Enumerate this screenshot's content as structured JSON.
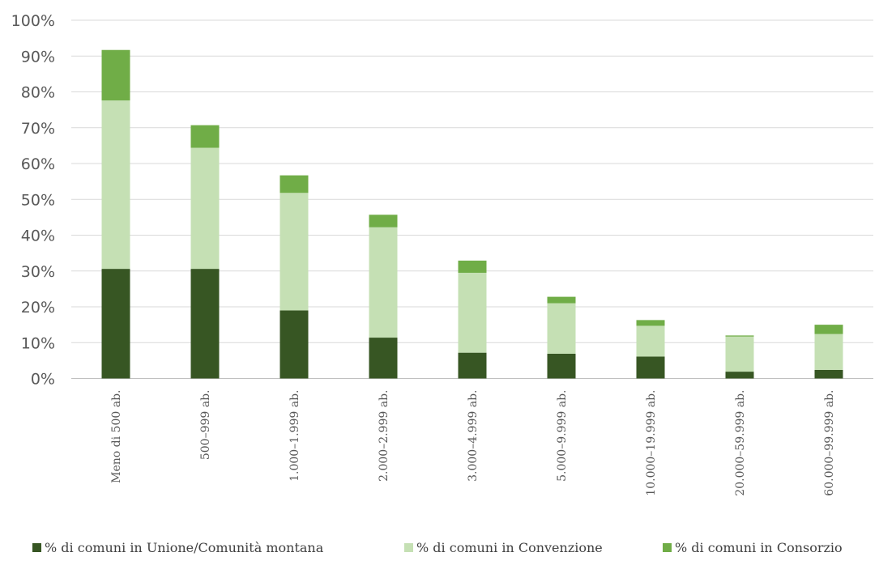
{
  "chart_data": {
    "type": "bar",
    "stacked": true,
    "title": "",
    "xlabel": "",
    "ylabel": "",
    "ylim": [
      0,
      100
    ],
    "ytick_labels": [
      "0%",
      "10%",
      "20%",
      "30%",
      "40%",
      "50%",
      "60%",
      "70%",
      "80%",
      "90%",
      "100%"
    ],
    "grid": true,
    "legend_position": "bottom",
    "categories": [
      "Meno di 500 ab.",
      "500–999 ab.",
      "1.000–1.999 ab.",
      "2.000–2.999 ab.",
      "3.000–4.999 ab.",
      "5.000–9.999 ab.",
      "10.000–19.999 ab.",
      "20.000–59.999 ab.",
      "60.000–99.999 ab."
    ],
    "series": [
      {
        "name": "% di comuni in Unione/Comunità montana",
        "color": "#375623",
        "values": [
          30.6,
          30.6,
          19.0,
          11.4,
          7.2,
          6.9,
          6.1,
          1.9,
          2.4
        ]
      },
      {
        "name": "% di comuni in Convenzione",
        "color": "#c5e0b4",
        "values": [
          47.0,
          33.8,
          32.8,
          30.8,
          22.3,
          14.1,
          8.6,
          9.8,
          10.0
        ]
      },
      {
        "name": "% di comuni in Consorzio",
        "color": "#70ad47",
        "values": [
          14.1,
          6.3,
          4.9,
          3.5,
          3.4,
          1.8,
          1.6,
          0.3,
          2.6
        ]
      }
    ]
  }
}
